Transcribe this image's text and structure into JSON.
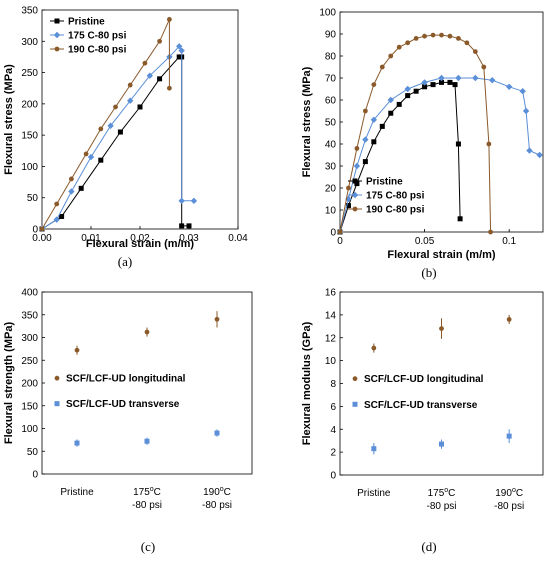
{
  "chart_data": [
    {
      "panel_label": "(a)",
      "type": "line",
      "xlabel": "Flexural strain (m/m)",
      "ylabel": "Flexural stress (MPa)",
      "xlim": [
        0,
        0.04
      ],
      "ylim": [
        0,
        350
      ],
      "xticks": [
        "0.00",
        "0.01",
        "0.02",
        "0.03",
        "0.04"
      ],
      "yticks": [
        "0",
        "50",
        "100",
        "150",
        "200",
        "250",
        "300",
        "350"
      ],
      "legend_position": "top-left",
      "series": [
        {
          "name": "Pristine",
          "color": "#000000",
          "marker": "square",
          "x": [
            0.0,
            0.004,
            0.008,
            0.012,
            0.016,
            0.02,
            0.024,
            0.028,
            0.0285,
            0.0285,
            0.03
          ],
          "y": [
            0,
            20,
            65,
            110,
            155,
            195,
            240,
            275,
            275,
            5,
            5
          ]
        },
        {
          "name": "175 C-80 psi",
          "color": "#5b8fd8",
          "marker": "diamond",
          "x": [
            0.0,
            0.003,
            0.006,
            0.01,
            0.014,
            0.018,
            0.022,
            0.026,
            0.028,
            0.0285,
            0.0285,
            0.031
          ],
          "y": [
            0,
            15,
            60,
            115,
            165,
            205,
            245,
            275,
            292,
            285,
            45,
            45
          ]
        },
        {
          "name": "190 C-80 psi",
          "color": "#8b5a2b",
          "marker": "circle",
          "x": [
            0.0,
            0.003,
            0.006,
            0.009,
            0.012,
            0.015,
            0.018,
            0.021,
            0.024,
            0.026,
            0.026
          ],
          "y": [
            0,
            40,
            80,
            120,
            160,
            195,
            230,
            265,
            300,
            335,
            225
          ]
        }
      ]
    },
    {
      "panel_label": "(b)",
      "type": "line",
      "xlabel": "Flexural strain (m/m)",
      "ylabel": "Flexural stress (MPa)",
      "xlim": [
        0,
        0.12
      ],
      "ylim": [
        0,
        100
      ],
      "xticks": [
        "0",
        "0.05",
        "0.1"
      ],
      "xtick_values": [
        0,
        0.05,
        0.1
      ],
      "yticks": [
        "0",
        "10",
        "20",
        "30",
        "40",
        "50",
        "60",
        "70",
        "80",
        "90",
        "100"
      ],
      "legend_position": "bottom-left",
      "series": [
        {
          "name": "Pristine",
          "color": "#000000",
          "marker": "square",
          "x": [
            0.0,
            0.005,
            0.01,
            0.015,
            0.02,
            0.025,
            0.03,
            0.035,
            0.04,
            0.045,
            0.05,
            0.055,
            0.06,
            0.065,
            0.068,
            0.07,
            0.071
          ],
          "y": [
            0,
            12,
            22,
            32,
            41,
            48,
            54,
            58,
            62,
            64,
            66,
            67,
            68,
            68,
            67,
            40,
            6
          ]
        },
        {
          "name": "175 C-80 psi",
          "color": "#5b8fd8",
          "marker": "diamond",
          "x": [
            0.0,
            0.005,
            0.01,
            0.015,
            0.02,
            0.03,
            0.04,
            0.05,
            0.06,
            0.07,
            0.08,
            0.09,
            0.1,
            0.108,
            0.11,
            0.112,
            0.118
          ],
          "y": [
            0,
            15,
            30,
            42,
            51,
            60,
            65,
            68,
            70,
            70,
            70,
            69,
            66,
            64,
            55,
            37,
            35
          ]
        },
        {
          "name": "190 C-80 psi",
          "color": "#8b5a2b",
          "marker": "circle",
          "x": [
            0.0,
            0.005,
            0.01,
            0.015,
            0.02,
            0.025,
            0.03,
            0.035,
            0.04,
            0.045,
            0.05,
            0.055,
            0.06,
            0.065,
            0.07,
            0.075,
            0.08,
            0.085,
            0.088,
            0.089
          ],
          "y": [
            0,
            20,
            38,
            55,
            67,
            75,
            80,
            84,
            86,
            88,
            89,
            89.5,
            89.5,
            89,
            88,
            86,
            82,
            75,
            40,
            0
          ]
        }
      ]
    },
    {
      "panel_label": "(c)",
      "type": "scatter",
      "ylabel": "Flexural strength (MPa)",
      "ylim": [
        0,
        400
      ],
      "yticks": [
        "0",
        "50",
        "100",
        "150",
        "200",
        "250",
        "300",
        "350",
        "400"
      ],
      "categories": [
        "Pristine",
        "175ºC\n-80 psi",
        "190ºC\n-80 psi"
      ],
      "category_lines": [
        [
          "Pristine"
        ],
        [
          "175",
          "o",
          "C"
        ],
        [
          "190",
          "o",
          "C"
        ]
      ],
      "category_second_lines": [
        "",
        "-80 psi",
        "-80 psi"
      ],
      "legend_position": "center-left",
      "series": [
        {
          "name": "SCF/LCF-UD longitudinal",
          "color": "#8b5a2b",
          "marker": "circle",
          "values": [
            272,
            312,
            340
          ],
          "errors": [
            10,
            10,
            18
          ]
        },
        {
          "name": "SCF/LCF-UD transverse",
          "color": "#5b8fd8",
          "marker": "square",
          "values": [
            68,
            72,
            90
          ],
          "errors": [
            8,
            8,
            8
          ]
        }
      ]
    },
    {
      "panel_label": "(d)",
      "type": "scatter",
      "ylabel": "Flexural modulus (GPa)",
      "ylim": [
        0,
        16
      ],
      "yticks": [
        "0",
        "2",
        "4",
        "6",
        "8",
        "10",
        "12",
        "14",
        "16"
      ],
      "categories": [
        "Pristine",
        "175ºC\n-80 psi",
        "190ºC\n-80 psi"
      ],
      "category_lines": [
        [
          "Pristine"
        ],
        [
          "175",
          "o",
          "C"
        ],
        [
          "190",
          "o",
          "C"
        ]
      ],
      "category_second_lines": [
        "",
        "-80 psi",
        "-80 psi"
      ],
      "legend_position": "center-left",
      "series": [
        {
          "name": "SCF/LCF-UD longitudinal",
          "color": "#8b5a2b",
          "marker": "circle",
          "values": [
            11.1,
            12.8,
            13.6
          ],
          "errors": [
            0.4,
            0.9,
            0.4
          ]
        },
        {
          "name": "SCF/LCF-UD transverse",
          "color": "#5b8fd8",
          "marker": "square",
          "values": [
            2.3,
            2.7,
            3.4
          ],
          "errors": [
            0.5,
            0.4,
            0.6
          ]
        }
      ]
    }
  ]
}
